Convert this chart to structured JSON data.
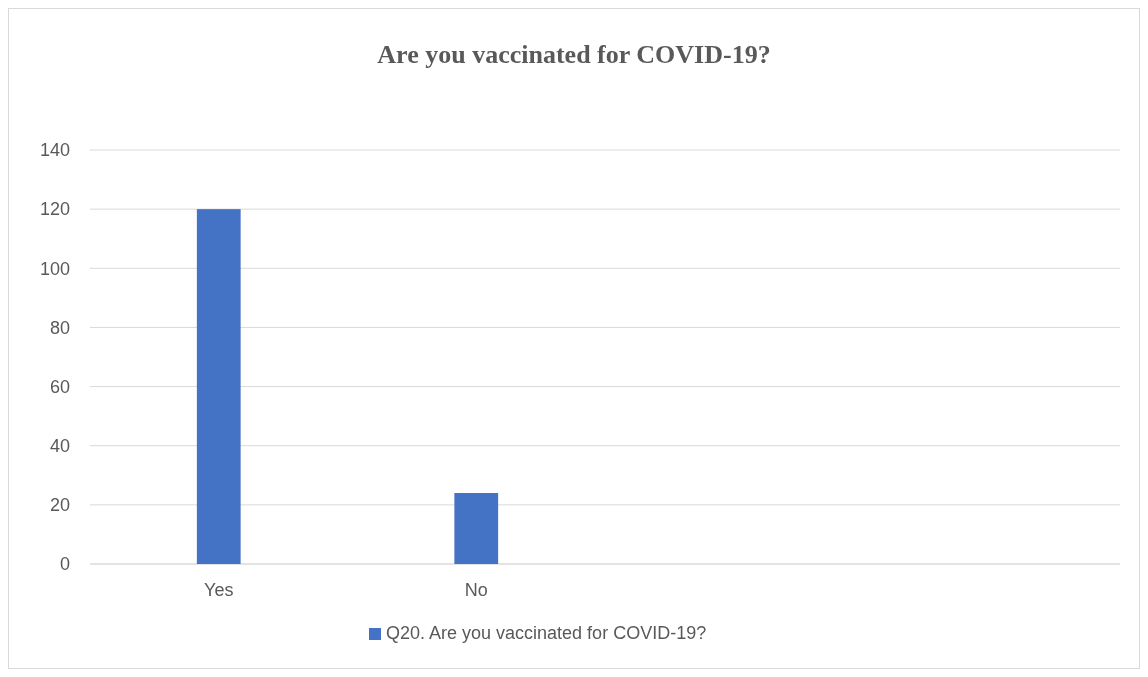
{
  "chart_data": {
    "type": "bar",
    "title": "Are you vaccinated for COVID-19?",
    "categories": [
      "Yes",
      "No",
      null,
      null
    ],
    "series": [
      {
        "name": "Q20. Are you vaccinated for COVID-19?",
        "color": "#4472c4",
        "values": [
          120,
          24,
          null,
          null
        ]
      }
    ],
    "ylim": [
      0,
      140
    ],
    "yticks": [
      0,
      20,
      40,
      60,
      80,
      100,
      120,
      140
    ],
    "grid": "y",
    "legend": "bottom"
  }
}
